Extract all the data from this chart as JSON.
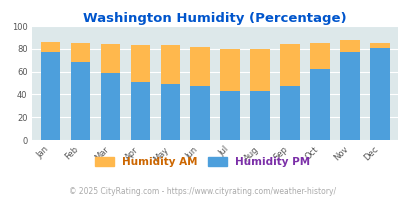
{
  "title": "Washington Humidity (Percentage)",
  "months": [
    "Jan",
    "Feb",
    "Mar",
    "Apr",
    "May",
    "Jun",
    "Jul",
    "Aug",
    "Sep",
    "Oct",
    "Nov",
    "Dec"
  ],
  "humidity_pm": [
    77,
    68,
    59,
    51,
    49,
    47,
    43,
    43,
    47,
    62,
    77,
    81
  ],
  "humidity_am": [
    86,
    85,
    84,
    83,
    83,
    82,
    80,
    80,
    84,
    85,
    88,
    85
  ],
  "color_pm": "#4d9fdc",
  "color_am": "#ffb84d",
  "color_bg": "#dde8ea",
  "color_title": "#0055cc",
  "ylim": [
    0,
    100
  ],
  "yticks": [
    0,
    20,
    40,
    60,
    80,
    100
  ],
  "legend_am": "Humidity AM",
  "legend_pm": "Humidity PM",
  "legend_label_color_am": "#cc6600",
  "legend_label_color_pm": "#7b2fa8",
  "footer": "© 2025 CityRating.com - https://www.cityrating.com/weather-history/",
  "title_fontsize": 9.5,
  "tick_fontsize": 6,
  "legend_fontsize": 7.5,
  "footer_fontsize": 5.5
}
